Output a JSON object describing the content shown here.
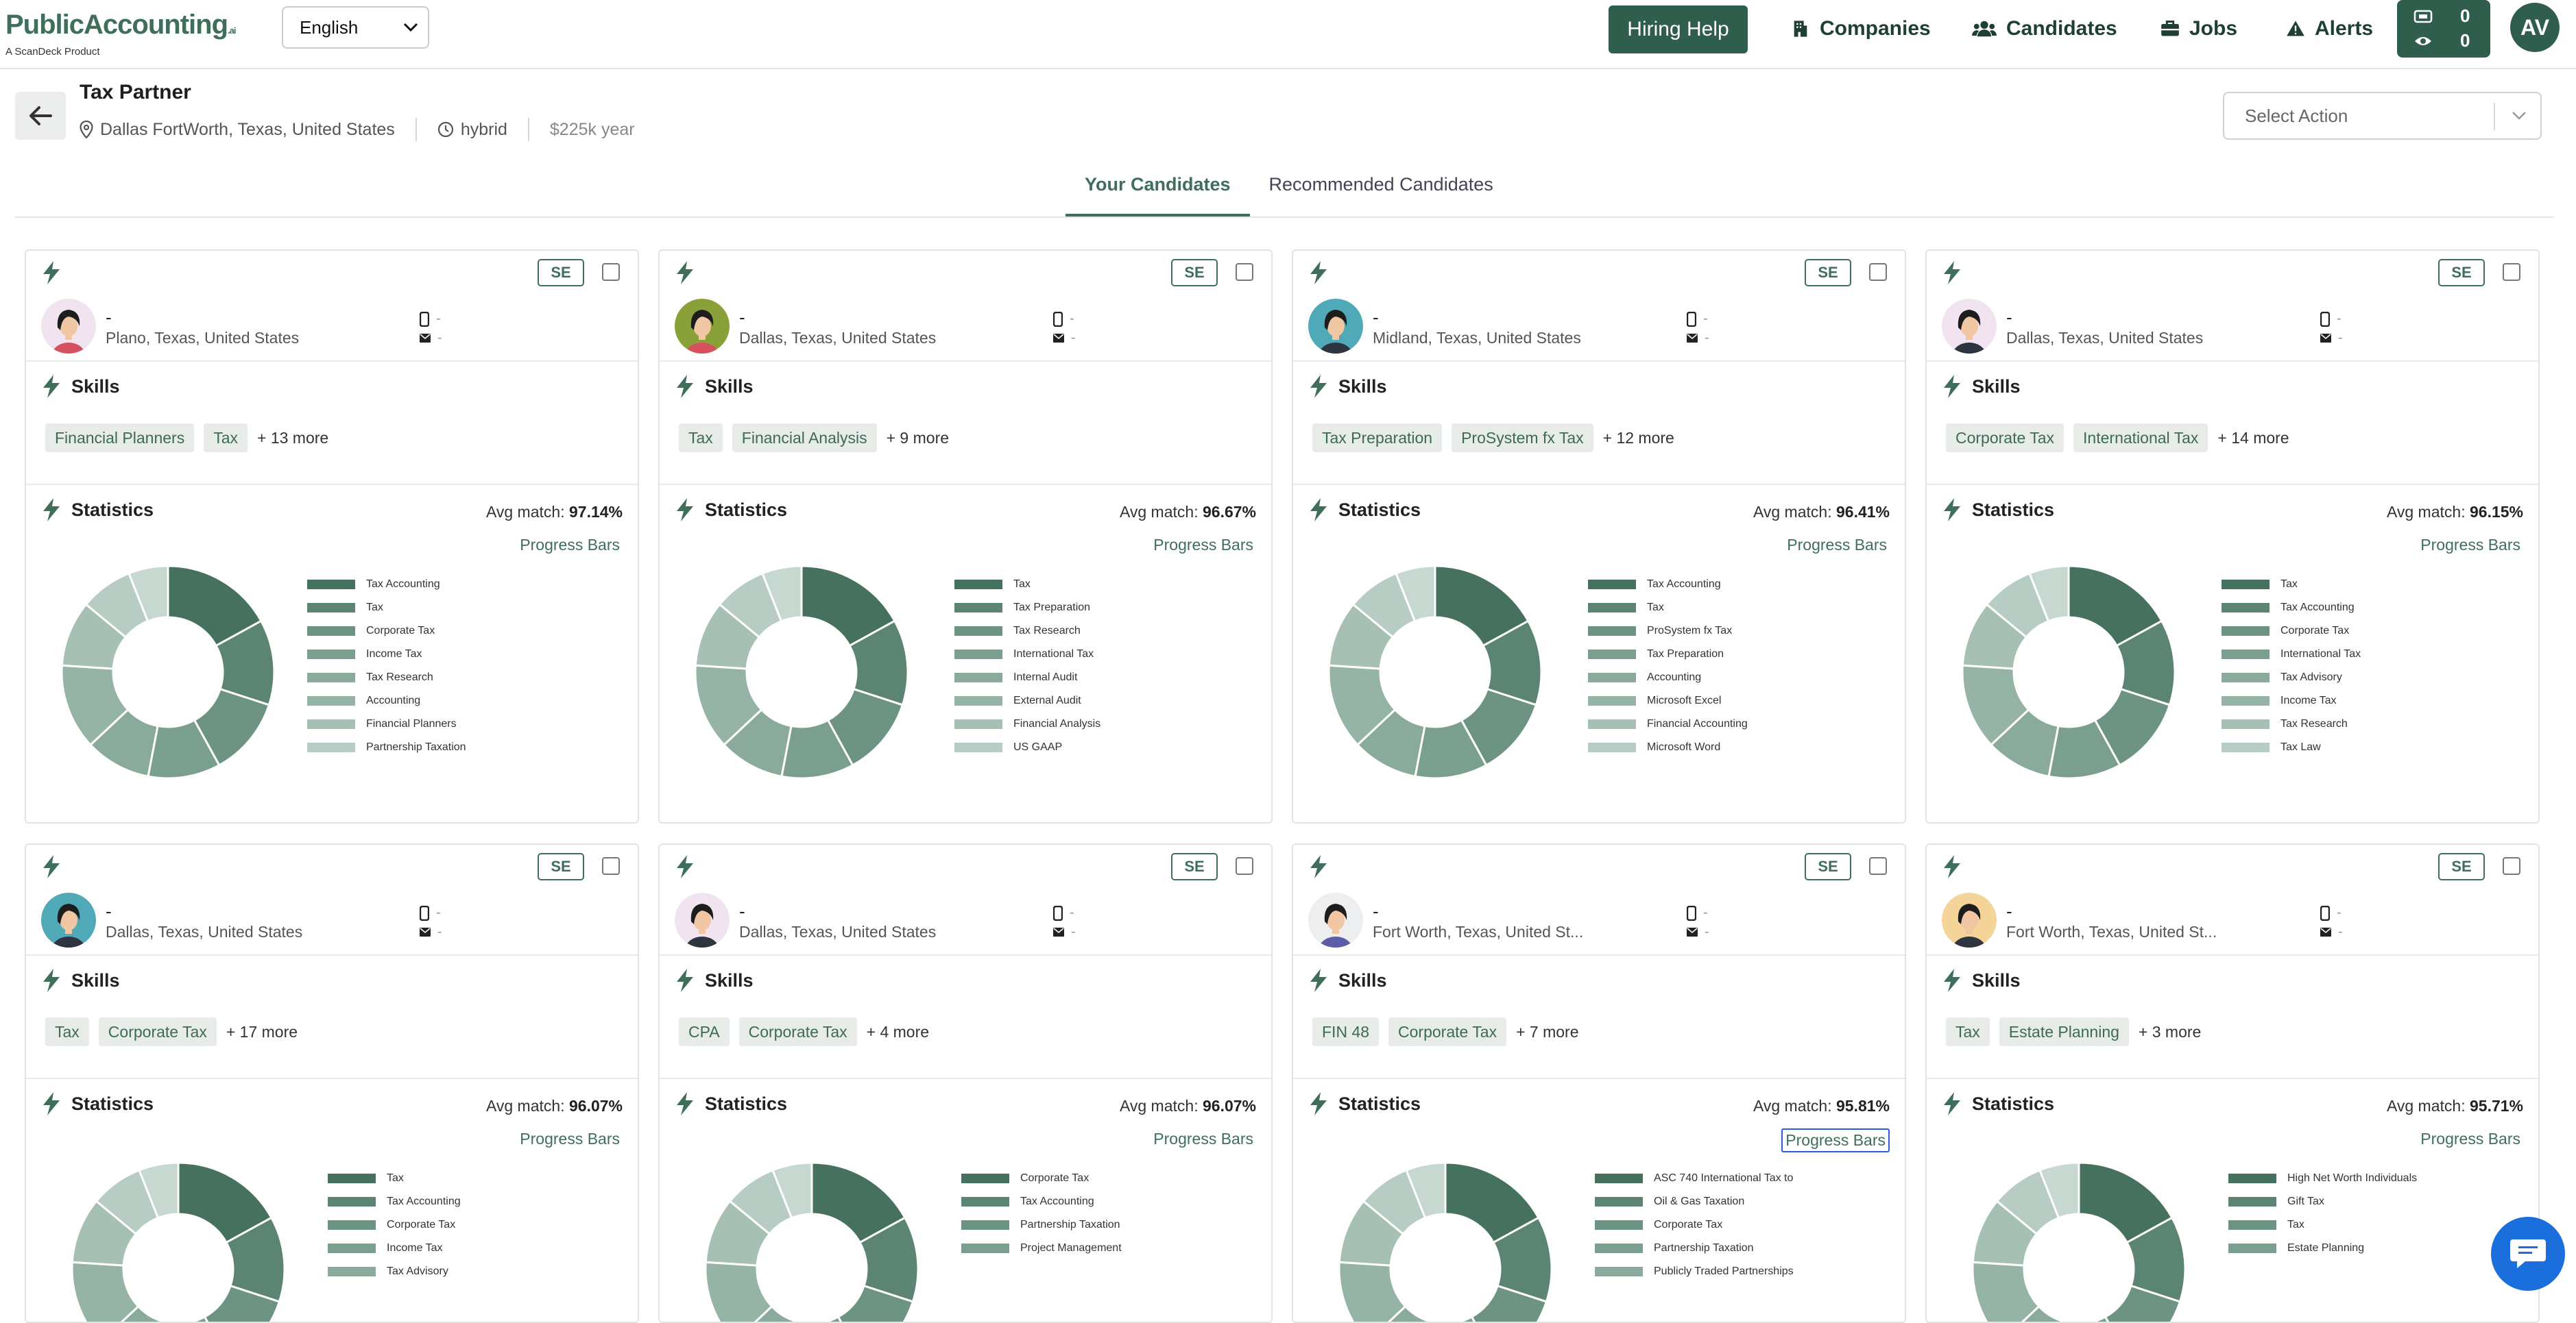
{
  "topbar": {
    "logo_main": "PublicAccounting",
    "logo_tld": ".ai",
    "logo_sub": "A ScanDeck Product",
    "language": "English",
    "hiring_help": "Hiring Help",
    "nav": {
      "companies": "Companies",
      "candidates": "Candidates",
      "jobs": "Jobs",
      "alerts": "Alerts"
    },
    "counter_top": "0",
    "counter_bottom": "0",
    "avatar_initials": "AV"
  },
  "job": {
    "title": "Tax Partner",
    "location": "Dallas FortWorth, Texas, United States",
    "work_mode": "hybrid",
    "salary": "$225k year",
    "select_action_placeholder": "Select Action"
  },
  "tabs": {
    "your_candidates": "Your Candidates",
    "recommended": "Recommended Candidates"
  },
  "labels": {
    "se_badge": "SE",
    "skills": "Skills",
    "statistics": "Statistics",
    "avg_match_prefix": "Avg match: ",
    "progress_bars": "Progress Bars",
    "contact_dash": "-"
  },
  "colors": {
    "brand": "#2f5e4c",
    "accent_text": "#3f6e5b",
    "chip_bg": "#e8ece9",
    "focus_ring": "#2b5bd7"
  },
  "candidates": [
    {
      "name": "-",
      "location": "Plano, Texas, United States",
      "avatar_bg": "#f1e4f0",
      "shirt": "#d4515d",
      "skills": [
        "Financial Planners",
        "Tax"
      ],
      "more": "+ 13 more",
      "avg_match": "97.14%",
      "legend": [
        "Tax Accounting",
        "Tax",
        "Corporate Tax",
        "Income Tax",
        "Tax Research",
        "Accounting",
        "Financial Planners",
        "Partnership Taxation"
      ]
    },
    {
      "name": "-",
      "location": "Dallas, Texas, United States",
      "avatar_bg": "#8aa13a",
      "shirt": "#d4515d",
      "skills": [
        "Tax",
        "Financial Analysis"
      ],
      "more": "+ 9 more",
      "avg_match": "96.67%",
      "legend": [
        "Tax",
        "Tax Preparation",
        "Tax Research",
        "International Tax",
        "Internal Audit",
        "External Audit",
        "Financial Analysis",
        "US GAAP"
      ]
    },
    {
      "name": "-",
      "location": "Midland, Texas, United States",
      "avatar_bg": "#4fa9b7",
      "shirt": "#2e3440",
      "skills": [
        "Tax Preparation",
        "ProSystem fx Tax"
      ],
      "more": "+ 12 more",
      "avg_match": "96.41%",
      "legend": [
        "Tax Accounting",
        "Tax",
        "ProSystem fx Tax",
        "Tax Preparation",
        "Accounting",
        "Microsoft Excel",
        "Financial Accounting",
        "Microsoft Word"
      ]
    },
    {
      "name": "-",
      "location": "Dallas, Texas, United States",
      "avatar_bg": "#f1e4f0",
      "shirt": "#2e3440",
      "skills": [
        "Corporate Tax",
        "International Tax"
      ],
      "more": "+ 14 more",
      "avg_match": "96.15%",
      "legend": [
        "Tax",
        "Tax Accounting",
        "Corporate Tax",
        "International Tax",
        "Tax Advisory",
        "Income Tax",
        "Tax Research",
        "Tax Law"
      ]
    },
    {
      "name": "-",
      "location": "Dallas, Texas, United States",
      "avatar_bg": "#4fa9b7",
      "shirt": "#2e3440",
      "skills": [
        "Tax",
        "Corporate Tax"
      ],
      "more": "+ 17 more",
      "avg_match": "96.07%",
      "legend": [
        "Tax",
        "Tax Accounting",
        "Corporate Tax",
        "Income Tax",
        "Tax Advisory"
      ]
    },
    {
      "name": "-",
      "location": "Dallas, Texas, United States",
      "avatar_bg": "#f1e4f0",
      "shirt": "#2e3440",
      "skills": [
        "CPA",
        "Corporate Tax"
      ],
      "more": "+ 4 more",
      "avg_match": "96.07%",
      "legend": [
        "Corporate Tax",
        "Tax Accounting",
        "Partnership Taxation",
        "Project Management"
      ]
    },
    {
      "name": "-",
      "location": "Fort Worth, Texas, United St...",
      "avatar_bg": "#eceef0",
      "shirt": "#5b5ea6",
      "skills": [
        "FIN 48",
        "Corporate Tax"
      ],
      "more": "+ 7 more",
      "avg_match": "95.81%",
      "legend": [
        "ASC 740  International Tax to",
        "Oil & Gas Taxation",
        "Corporate Tax",
        "Partnership Taxation",
        "Publicly Traded Partnerships"
      ]
    },
    {
      "name": "-",
      "location": "Fort Worth, Texas, United St...",
      "avatar_bg": "#f5d49a",
      "shirt": "#2e3440",
      "skills": [
        "Tax",
        "Estate Planning"
      ],
      "more": "+ 3 more",
      "avg_match": "95.71%",
      "legend": [
        "High Net Worth Individuals",
        "Gift Tax",
        "Tax",
        "Estate Planning"
      ]
    }
  ]
}
